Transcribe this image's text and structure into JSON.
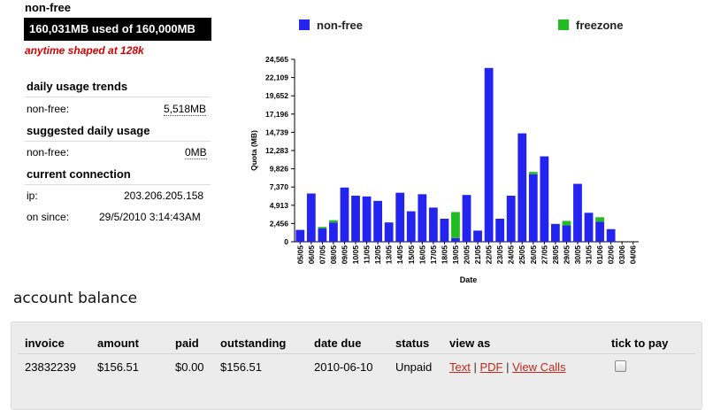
{
  "plan": {
    "title": "non-free",
    "usage_text": "160,031MB used of 160,000MB",
    "shaped_text": "anytime shaped at 128k"
  },
  "daily_trends": {
    "heading": "daily usage trends",
    "label": "non-free:",
    "value": "5,518MB"
  },
  "suggested": {
    "heading": "suggested daily usage",
    "label": "non-free:",
    "value": "0MB"
  },
  "connection": {
    "heading": "current connection",
    "ip_label": "ip:",
    "ip_value": "203.206.205.158",
    "since_label": "on since:",
    "since_value": "29/5/2010 3:14:43AM"
  },
  "chart_data": {
    "type": "bar",
    "stacked": true,
    "ylabel": "Quota (MB)",
    "xlabel": "Date",
    "yticks": [
      "24,565",
      "22,109",
      "19,652",
      "17,196",
      "14,739",
      "12,283",
      "9,826",
      "7,370",
      "4,913",
      "2,456",
      "0"
    ],
    "ylim": [
      0,
      24565
    ],
    "legend_position": "top",
    "categories": [
      "05/05",
      "06/05",
      "07/05",
      "08/05",
      "09/05",
      "10/05",
      "11/05",
      "12/05",
      "13/05",
      "14/05",
      "15/05",
      "16/05",
      "17/05",
      "18/05",
      "19/05",
      "20/05",
      "21/05",
      "22/05",
      "23/05",
      "24/05",
      "25/05",
      "26/05",
      "27/05",
      "28/05",
      "29/05",
      "30/05",
      "31/05",
      "01/06",
      "02/06",
      "03/06",
      "04/06"
    ],
    "series": [
      {
        "name": "non-free",
        "color": "#2424f0",
        "values": [
          1600,
          6500,
          1800,
          2600,
          7300,
          6200,
          6100,
          5500,
          2600,
          6600,
          4100,
          6400,
          4600,
          3100,
          500,
          6300,
          1500,
          23400,
          3100,
          6200,
          14600,
          9100,
          11500,
          2400,
          2200,
          7800,
          3900,
          2700,
          1700,
          0,
          0
        ]
      },
      {
        "name": "freezone",
        "color": "#22bb22",
        "values": [
          0,
          0,
          200,
          300,
          0,
          0,
          0,
          0,
          0,
          0,
          0,
          0,
          0,
          0,
          3500,
          0,
          0,
          0,
          0,
          0,
          0,
          300,
          0,
          0,
          600,
          0,
          0,
          600,
          0,
          0,
          0
        ]
      }
    ]
  },
  "account": {
    "title": "account balance",
    "headers": [
      "invoice",
      "amount",
      "paid",
      "outstanding",
      "date due",
      "status",
      "view as",
      "tick to pay"
    ],
    "rows": [
      {
        "invoice": "23832239",
        "amount": "$156.51",
        "paid": "$0.00",
        "outstanding": "$156.51",
        "date_due": "2010-06-10",
        "status": "Unpaid",
        "link_text": "Text",
        "link_pdf": "PDF",
        "link_calls": "View Calls",
        "sep": "|"
      }
    ]
  }
}
